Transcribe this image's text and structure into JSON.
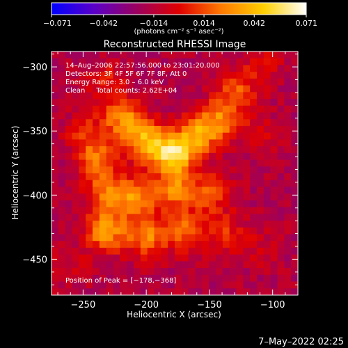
{
  "chart_data": {
    "type": "heatmap",
    "title": "Reconstructed RHESSI Image",
    "xlabel": "Heliocentric X (arcsec)",
    "ylabel": "Heliocentric Y (arcsec)",
    "xlim": [
      -275,
      -80
    ],
    "ylim": [
      -478,
      -288
    ],
    "x_ticks": [
      -250,
      -200,
      -150,
      -100
    ],
    "y_ticks": [
      -300,
      -350,
      -400,
      -450
    ],
    "x_tick_labels": [
      "−250",
      "−200",
      "−150",
      "−100"
    ],
    "y_tick_labels": [
      "−300",
      "−350",
      "−400",
      "−450"
    ],
    "colorbar": {
      "min": -0.071,
      "max": 0.071,
      "ticks": [
        -0.071,
        -0.042,
        -0.014,
        0.014,
        0.042,
        0.071
      ],
      "tick_labels": [
        "−0.071",
        "−0.042",
        "−0.014",
        "0.014",
        "0.042",
        "0.071"
      ],
      "unit_label": "(photons cm⁻² s⁻¹ asec⁻²)",
      "colormap": [
        "#0000ff",
        "#5a00c8",
        "#9a0060",
        "#e00000",
        "#ff7a00",
        "#ffd000",
        "#ffffff"
      ]
    },
    "annotations": [
      "14–Aug–2006 22:57:56.000 to 23:01:20.000",
      "Detectors: 3F 4F 5F 6F 7F 8F, Att 0",
      "Energy Range: 3.0 – 6.0 keV",
      "Clean     Total counts: 2.62E+04"
    ],
    "peak_label": "Position of Peak = [−178,−368]",
    "peak": {
      "x": -178,
      "y": -368,
      "value": 0.071
    },
    "sources": [
      {
        "x": -178,
        "y": -368,
        "value": 0.071
      },
      {
        "x": -200,
        "y": -358,
        "value": 0.052
      },
      {
        "x": -218,
        "y": -340,
        "value": 0.044
      },
      {
        "x": -158,
        "y": -352,
        "value": 0.046
      },
      {
        "x": -140,
        "y": -340,
        "value": 0.036
      },
      {
        "x": -128,
        "y": -318,
        "value": 0.028
      },
      {
        "x": -238,
        "y": -372,
        "value": 0.034
      },
      {
        "x": -232,
        "y": -398,
        "value": 0.036
      },
      {
        "x": -208,
        "y": -402,
        "value": 0.042
      },
      {
        "x": -178,
        "y": -396,
        "value": 0.04
      },
      {
        "x": -150,
        "y": -398,
        "value": 0.03
      },
      {
        "x": -232,
        "y": -428,
        "value": 0.048
      },
      {
        "x": -200,
        "y": -432,
        "value": 0.042
      },
      {
        "x": -170,
        "y": -428,
        "value": 0.034
      },
      {
        "x": -140,
        "y": -428,
        "value": 0.022
      },
      {
        "x": -248,
        "y": -352,
        "value": 0.022
      },
      {
        "x": -232,
        "y": -312,
        "value": 0.02
      },
      {
        "x": -108,
        "y": -298,
        "value": 0.016
      },
      {
        "x": -112,
        "y": -352,
        "value": 0.012
      },
      {
        "x": -112,
        "y": -440,
        "value": 0.01
      },
      {
        "x": -260,
        "y": -455,
        "value": 0.01
      }
    ]
  },
  "footer": {
    "timestamp": "7–May–2022 02:25"
  }
}
